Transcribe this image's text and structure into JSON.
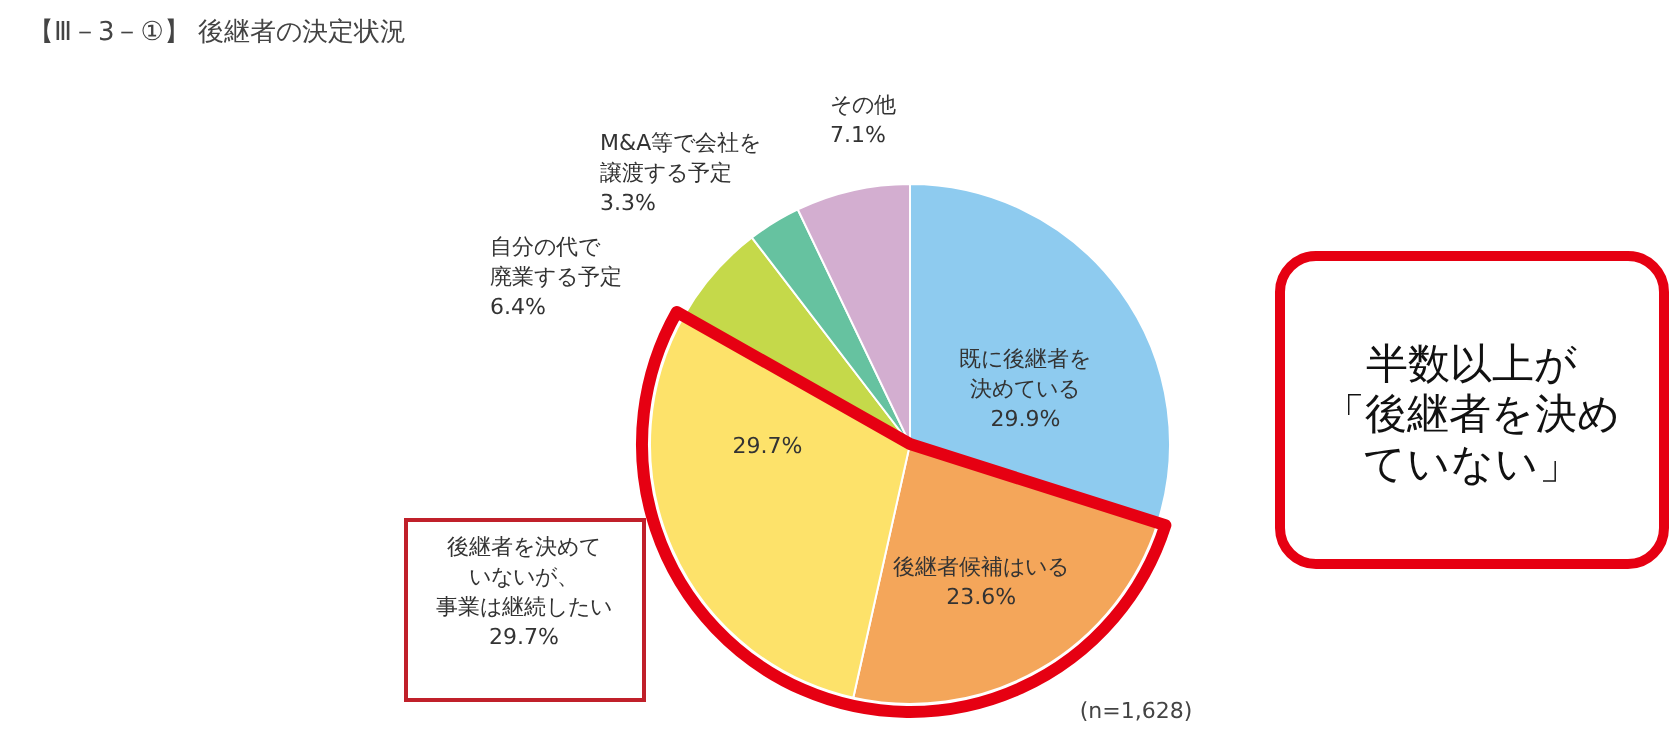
{
  "chart_data": {
    "type": "pie",
    "title": "【Ⅲ－3－①】 後継者の決定状況",
    "categories": [
      "既に後継者を決めている",
      "後継者候補はいる",
      "後継者を決めていないが、事業は継続したい",
      "自分の代で廃業する予定",
      "M&A等で会社を譲渡する予定",
      "その他"
    ],
    "values": [
      29.9,
      23.6,
      29.7,
      6.4,
      3.3,
      7.1
    ],
    "colors": [
      "#8ecbef",
      "#f4a65a",
      "#fde26a",
      "#c5d94a",
      "#66c2a0",
      "#d3aed0"
    ],
    "value_labels": [
      "29.9%",
      "23.6%",
      "29.7%",
      "6.4%",
      "3.3%",
      "7.1%"
    ],
    "annotations": [
      "(n=1,628)",
      "半数以上が「後継者を決めていない」"
    ]
  }
}
